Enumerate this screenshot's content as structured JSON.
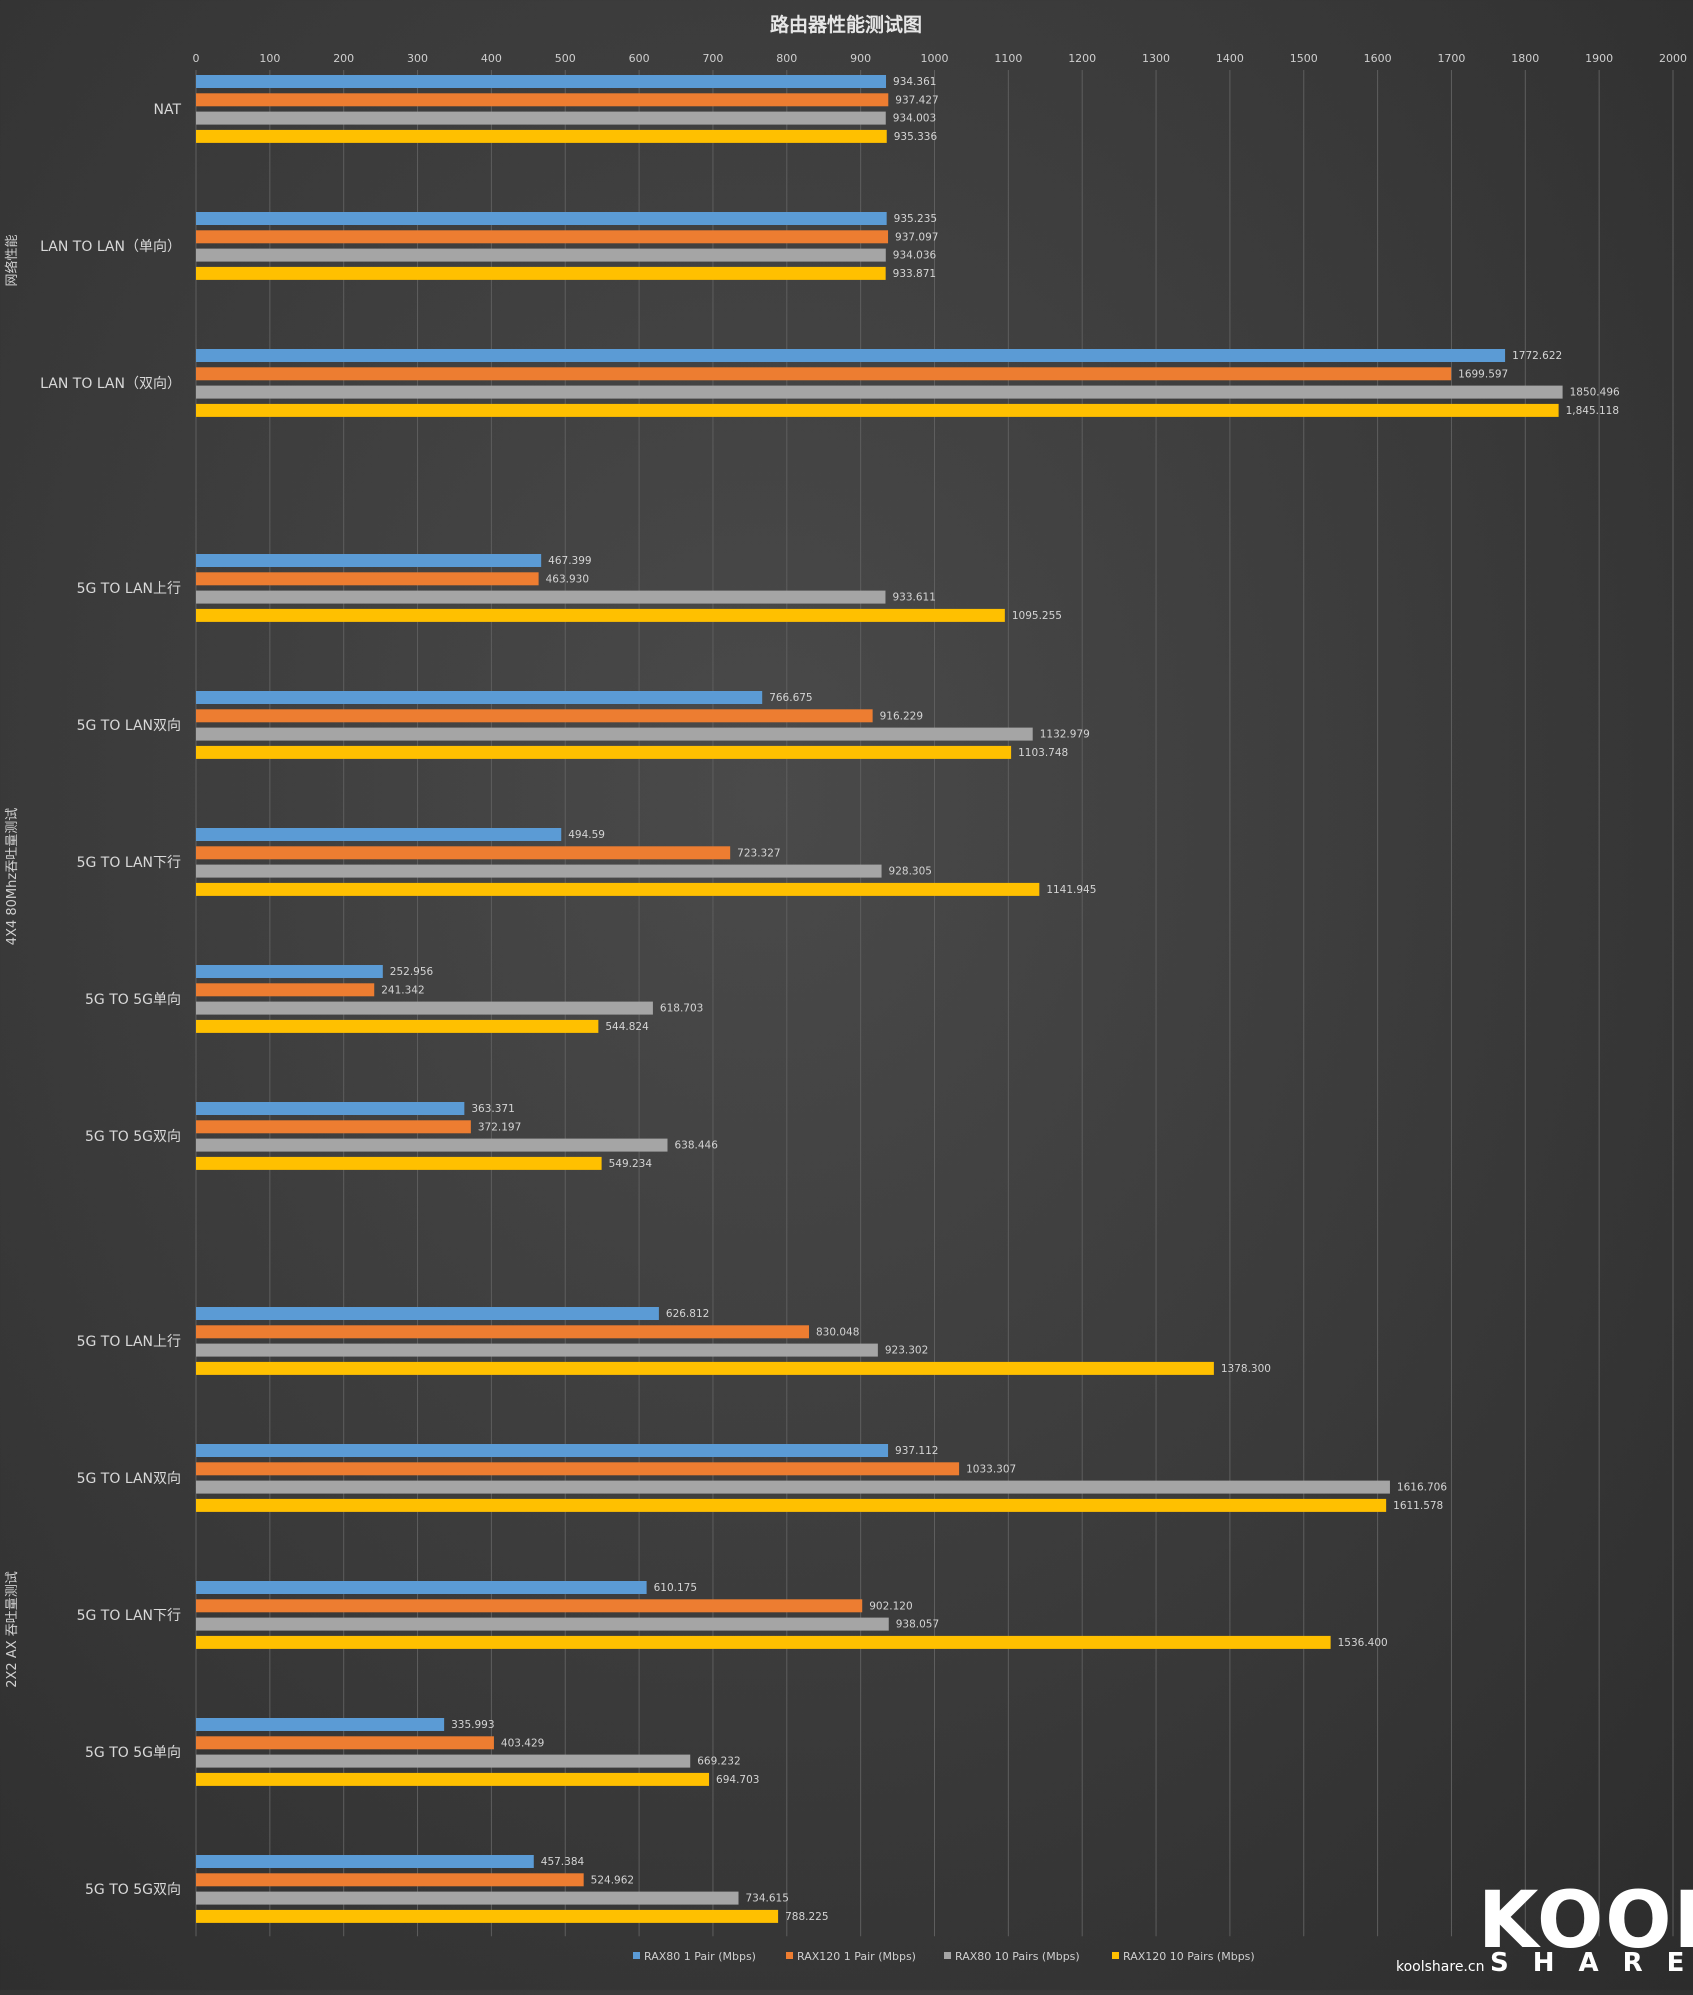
{
  "chart_data": {
    "type": "bar",
    "orientation": "horizontal",
    "title": "路由器性能测试图",
    "xlim": [
      0,
      2000
    ],
    "x_ticks": [
      0,
      100,
      200,
      300,
      400,
      500,
      600,
      700,
      800,
      900,
      1000,
      1100,
      1200,
      1300,
      1400,
      1500,
      1600,
      1700,
      1800,
      1900,
      2000
    ],
    "grid": true,
    "legend_position": "bottom",
    "colors": [
      "#5b9bd5",
      "#ed7d31",
      "#a5a5a5",
      "#ffc000"
    ],
    "series_names": [
      "RAX80 1 Pair (Mbps)",
      "RAX120 1 Pair (Mbps)",
      "RAX80 10 Pairs (Mbps)",
      "RAX120 10 Pairs (Mbps)"
    ],
    "groups": [
      {
        "label": "网络性能",
        "categories": [
          {
            "label": "NAT",
            "values": [
              934.361,
              937.427,
              934.003,
              935.336
            ],
            "value_labels": [
              "934.361",
              "937.427",
              "934.003",
              "935.336"
            ]
          },
          {
            "label": "LAN TO LAN（单向）",
            "values": [
              935.235,
              937.097,
              934.036,
              933.871
            ],
            "value_labels": [
              "935.235",
              "937.097",
              "934.036",
              "933.871"
            ]
          },
          {
            "label": "LAN TO LAN（双向）",
            "values": [
              1772.622,
              1699.597,
              1850.496,
              1845.118
            ],
            "value_labels": [
              "1772.622",
              "1699.597",
              "1850.496",
              "1,845.118"
            ]
          }
        ]
      },
      {
        "label": "4X4 80Mhz吞吐量测试",
        "categories": [
          {
            "label": "5G TO LAN上行",
            "values": [
              467.399,
              463.93,
              933.611,
              1095.255
            ],
            "value_labels": [
              "467.399",
              "463.930",
              "933.611",
              "1095.255"
            ]
          },
          {
            "label": "5G TO LAN双向",
            "values": [
              766.675,
              916.229,
              1132.979,
              1103.748
            ],
            "value_labels": [
              "766.675",
              "916.229",
              "1132.979",
              "1103.748"
            ]
          },
          {
            "label": "5G TO LAN下行",
            "values": [
              494.59,
              723.327,
              928.305,
              1141.945
            ],
            "value_labels": [
              "494.59",
              "723.327",
              "928.305",
              "1141.945"
            ]
          },
          {
            "label": "5G TO 5G单向",
            "values": [
              252.956,
              241.342,
              618.703,
              544.824
            ],
            "value_labels": [
              "252.956",
              "241.342",
              "618.703",
              "544.824"
            ]
          },
          {
            "label": "5G TO 5G双向",
            "values": [
              363.371,
              372.197,
              638.446,
              549.234
            ],
            "value_labels": [
              "363.371",
              "372.197",
              "638.446",
              "549.234"
            ]
          }
        ]
      },
      {
        "label": "2X2 AX 吞吐量测试",
        "categories": [
          {
            "label": "5G TO LAN上行",
            "values": [
              626.812,
              830.048,
              923.302,
              1378.3
            ],
            "value_labels": [
              "626.812",
              "830.048",
              "923.302",
              "1378.300"
            ]
          },
          {
            "label": "5G TO LAN双向",
            "values": [
              937.112,
              1033.307,
              1616.706,
              1611.578
            ],
            "value_labels": [
              "937.112",
              "1033.307",
              "1616.706",
              "1611.578"
            ]
          },
          {
            "label": "5G TO LAN下行",
            "values": [
              610.175,
              902.12,
              938.057,
              1536.4
            ],
            "value_labels": [
              "610.175",
              "902.120",
              "938.057",
              "1536.400"
            ]
          },
          {
            "label": "5G TO 5G单向",
            "values": [
              335.993,
              403.429,
              669.232,
              694.703
            ],
            "value_labels": [
              "335.993",
              "403.429",
              "669.232",
              "694.703"
            ]
          },
          {
            "label": "5G TO 5G双向",
            "values": [
              457.384,
              524.962,
              734.615,
              788.225
            ],
            "value_labels": [
              "457.384",
              "524.962",
              "734.615",
              "788.225"
            ]
          }
        ]
      }
    ]
  },
  "watermark": {
    "logo": "KOOL",
    "sub": "SHARE",
    "site": "koolshare.cn"
  }
}
